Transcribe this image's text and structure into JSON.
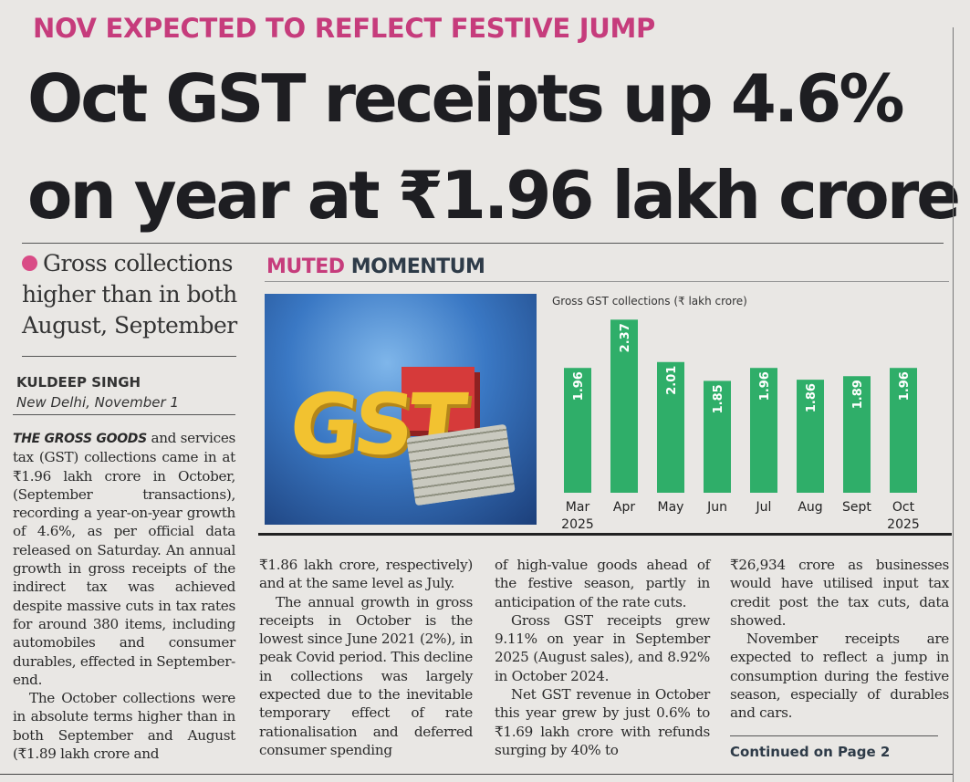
{
  "kicker": "NOV EXPECTED TO REFLECT FESTIVE JUMP",
  "headline": {
    "line1": "Oct GST receipts up 4.6%",
    "line2": "on year at ₹1.96 lakh crore"
  },
  "deck": "Gross collections higher than in both August, September",
  "byline": {
    "author": "KULDEEP SINGH",
    "dateline": "New Delhi, November 1"
  },
  "chart_section_label": {
    "part1": "MUTED",
    "part2": "MOMENTUM"
  },
  "photo_text": "GST",
  "chart_data": {
    "type": "bar",
    "title": "Gross GST collections (₹ lakh crore)",
    "categories": [
      "Mar",
      "Apr",
      "May",
      "Jun",
      "Jul",
      "Aug",
      "Sept",
      "Oct"
    ],
    "year_labels": {
      "Mar": "2025",
      "Oct": "2025"
    },
    "values": [
      1.96,
      2.37,
      2.01,
      1.85,
      1.96,
      1.86,
      1.89,
      1.96
    ],
    "value_labels": [
      "1.96",
      "2.37",
      "2.01",
      "1.85",
      "1.96",
      "1.86",
      "1.89",
      "1.96"
    ],
    "bar_color": "#2fae69",
    "ylim": [
      0.9,
      2.45
    ],
    "xlabel": "",
    "ylabel": ""
  },
  "body": {
    "lead": "THE GROSS GOODS",
    "p1": " and services tax (GST) collections came in at ₹1.96 lakh crore in October, (September transactions), recording a year-on-year growth of 4.6%, as per official data released on Saturday. An annual growth in gross receipts of the indirect tax was achieved despite massive cuts in tax rates for around 380 items, including automobiles and consumer durables, effected in September-end.",
    "p2": "The October collections were in absolute terms higher than in both September and August (₹1.89 lakh crore and",
    "p2b": "₹1.86 lakh crore, respectively) and at the same level as July.",
    "p3": "The annual growth in gross receipts in October is the lowest since June 2021 (2%), in peak Covid period. This decline in collections was largely expected due to the inevitable temporary effect of rate rationalisation and deferred consumer spending",
    "p3b": "of high-value goods ahead of the festive season, partly in anticipation of the rate cuts.",
    "p4": "Gross GST receipts grew 9.11% on year in September 2025 (August sales), and 8.92% in October 2024.",
    "p5": "Net GST revenue in October this year grew by just 0.6% to ₹1.69 lakh crore with refunds surging by 40% to",
    "p5b": "₹26,934 crore as businesses would have utilised input tax credit post the tax cuts, data showed.",
    "p6": "November receipts are expected to reflect a jump in consumption during the festive season, especially of durables and cars."
  },
  "continued": "Continued on Page 2"
}
